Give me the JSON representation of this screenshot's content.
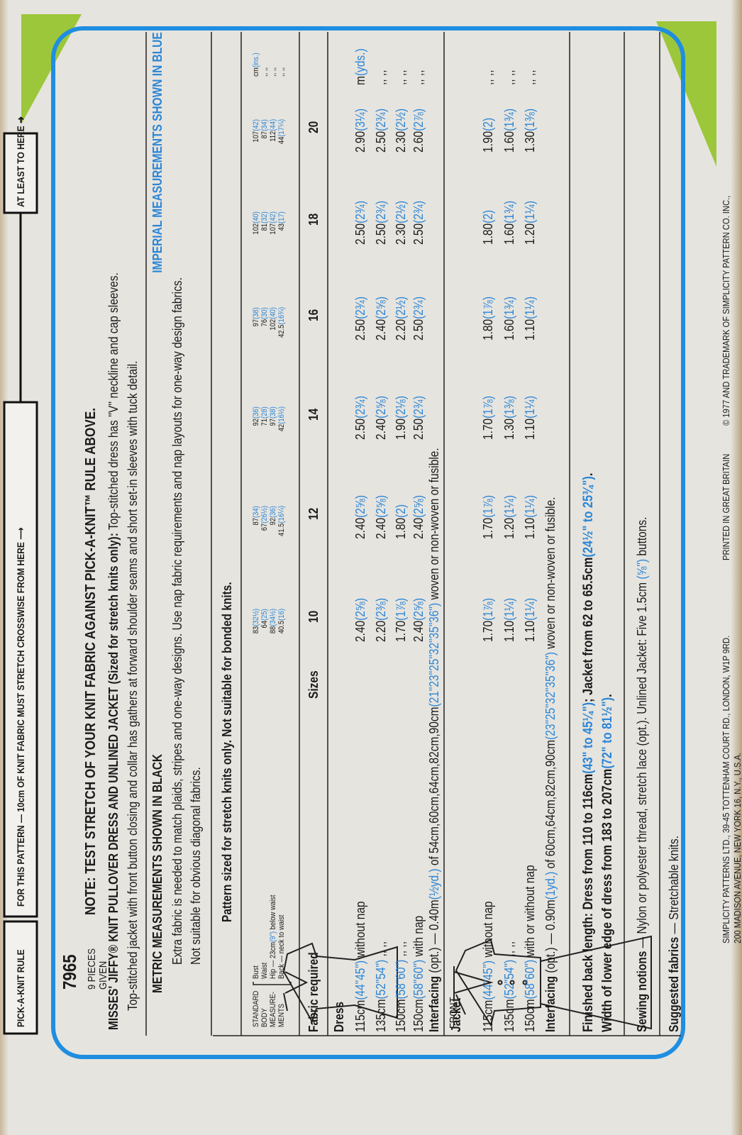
{
  "rule": {
    "label": "PICK-A-KNIT RULE",
    "text": "FOR THIS PATTERN — 10cm OF KNIT FABRIC MUST STRETCH CROSSWISE FROM HERE ⟶",
    "end": "AT LEAST TO HERE ➜"
  },
  "pattern": {
    "number": "7965",
    "pieces": [
      "9 PIECES",
      "GIVEN"
    ],
    "front": "FRONT"
  },
  "note": "NOTE: TEST STRETCH OF YOUR KNIT FABRIC AGAINST PICK-A-KNIT™ RULE ABOVE.",
  "title": "MISSES' JIFFY® KNIT PULLOVER DRESS AND UNLINED JACKET (Sized for stretch knits only):",
  "description": [
    "Top-stitched dress has ''V'' neckline and cap sleeves.",
    "Top-stitched jacket with front button closing and collar has gathers at forward shoulder seams and short set-in sleeves with tuck detail."
  ],
  "metric_heading": "METRIC MEASUREMENTS SHOWN IN BLACK",
  "imperial_heading": "IMPERIAL MEASUREMENTS SHOWN IN BLUE",
  "imperial_color": "#2b86d6",
  "notes": [
    "Extra fabric is needed to match plaids, stripes and one-way designs. Use nap fabric requirements and nap layouts for one-way design fabrics.",
    "Not suitable for obvious diagonal fabrics."
  ],
  "sized_for": "Pattern sized for stretch knits only. Not suitable for bonded knits.",
  "measurements": {
    "label": [
      "STANDARD",
      "BODY",
      "MEASURE-",
      "MENTS"
    ],
    "rows": [
      {
        "label": [
          {
            "text": "Bust"
          }
        ],
        "cells": [
          [
            "83",
            "(32½)"
          ],
          [
            "87",
            "(34)"
          ],
          [
            "92",
            "(36)"
          ],
          [
            "97",
            "(38)"
          ],
          [
            "102",
            "(40)"
          ],
          [
            "107",
            "(42)"
          ]
        ],
        "tail": [
          {
            "text": "cm"
          },
          {
            "text": "(ins.)",
            "color": "#2b86d6"
          }
        ]
      },
      {
        "label": [
          {
            "text": "Waist"
          }
        ],
        "cells": [
          [
            "64",
            "(25)"
          ],
          [
            "67",
            "(26½)"
          ],
          [
            "71",
            "(28)"
          ],
          [
            "76",
            "(30)"
          ],
          [
            "81",
            "(32)"
          ],
          [
            "87",
            "(34)"
          ]
        ],
        "tail": [
          {
            "text": ",,   ,,"
          }
        ]
      },
      {
        "label": [
          {
            "text": "Hip — 23cm"
          },
          {
            "text": "(9\")",
            "color": "#2b86d6"
          },
          {
            "text": " below waist"
          }
        ],
        "cells": [
          [
            "88",
            "(34½)"
          ],
          [
            "92",
            "(36)"
          ],
          [
            "97",
            "(38)"
          ],
          [
            "102",
            "(40)"
          ],
          [
            "107",
            "(42)"
          ],
          [
            "112",
            "(44)"
          ]
        ],
        "tail": [
          {
            "text": ",,   ,,"
          }
        ]
      },
      {
        "label": [
          {
            "text": "Back — neck to waist"
          }
        ],
        "cells": [
          [
            "40.5",
            "(16)"
          ],
          [
            "41.5",
            "(16¼)"
          ],
          [
            "42",
            "(16½)"
          ],
          [
            "42.5",
            "(16¾)"
          ],
          [
            "43",
            "(17)"
          ],
          [
            "44",
            "(17¼)"
          ]
        ],
        "tail": [
          {
            "text": ",,   ,,"
          }
        ]
      }
    ]
  },
  "fabric_label": "Fabric required",
  "sizes_label": "Sizes",
  "sizes": [
    "10",
    "12",
    "14",
    "16",
    "18",
    "20"
  ],
  "dress": {
    "heading": "Dress",
    "rows": [
      {
        "label": [
          {
            "text": "115cm"
          },
          {
            "text": "(44\"45\")",
            "color": "#2b86d6"
          },
          {
            "text": " without nap"
          }
        ],
        "cells": [
          [
            "2.40",
            "(2⅝)"
          ],
          [
            "2.40",
            "(2⅝)"
          ],
          [
            "2.50",
            "(2¾)"
          ],
          [
            "2.50",
            "(2¾)"
          ],
          [
            "2.50",
            "(2¾)"
          ],
          [
            "2.90",
            "(3¼)"
          ]
        ],
        "tail": [
          {
            "text": "m"
          },
          {
            "text": "(yds.)",
            "color": "#2b86d6"
          }
        ]
      },
      {
        "label": [
          {
            "text": "135cm"
          },
          {
            "text": "(52\"54\")",
            "color": "#2b86d6"
          },
          {
            "text": "   ,,    ,,"
          }
        ],
        "cells": [
          [
            "2.20",
            "(2⅜)"
          ],
          [
            "2.40",
            "(2⅝)"
          ],
          [
            "2.40",
            "(2⅝)"
          ],
          [
            "2.40",
            "(2⅝)"
          ],
          [
            "2.50",
            "(2¾)"
          ],
          [
            "2.50",
            "(2¾)"
          ]
        ],
        "tail": [
          {
            "text": ",,   ,,"
          }
        ]
      },
      {
        "label": [
          {
            "text": "150cm"
          },
          {
            "text": "(58\"60\")",
            "color": "#2b86d6"
          },
          {
            "text": "   ,,    ,,"
          }
        ],
        "cells": [
          [
            "1.70",
            "(1⅞)"
          ],
          [
            "1.80",
            "(2)"
          ],
          [
            "1.90",
            "(2⅛)"
          ],
          [
            "2.20",
            "(2½)"
          ],
          [
            "2.30",
            "(2½)"
          ],
          [
            "2.30",
            "(2½)"
          ]
        ],
        "tail": [
          {
            "text": ",,   ,,"
          }
        ]
      },
      {
        "label": [
          {
            "text": "150cm"
          },
          {
            "text": "(58\"60\")",
            "color": "#2b86d6"
          },
          {
            "text": " with nap"
          }
        ],
        "cells": [
          [
            "2.40",
            "(2⅝)"
          ],
          [
            "2.40",
            "(2⅝)"
          ],
          [
            "2.50",
            "(2¾)"
          ],
          [
            "2.50",
            "(2¾)"
          ],
          [
            "2.50",
            "(2¾)"
          ],
          [
            "2.60",
            "(2⅞)"
          ]
        ],
        "tail": [
          {
            "text": ",,   ,,"
          }
        ]
      }
    ],
    "interfacing": {
      "label": "Interfacing",
      "segments": [
        {
          "text": " (opt.) — 0.40m"
        },
        {
          "text": "(½yd.)",
          "color": "#2b86d6"
        },
        {
          "text": " of 54cm,60cm,64cm,82cm,90cm"
        },
        {
          "text": "(21\"23\"25\"32\"35\"36\")",
          "color": "#2b86d6"
        },
        {
          "text": " woven or non-woven or fusible."
        }
      ]
    }
  },
  "jacket": {
    "heading": "Jacket",
    "rows": [
      {
        "label": [
          {
            "text": "115cm"
          },
          {
            "text": "(44\"45\")",
            "color": "#2b86d6"
          },
          {
            "text": " without nap"
          }
        ],
        "cells": [
          [
            "1.70",
            "(1⅞)"
          ],
          [
            "1.70",
            "(1⅞)"
          ],
          [
            "1.70",
            "(1⅞)"
          ],
          [
            "1.80",
            "(1⅞)"
          ],
          [
            "1.80",
            "(2)"
          ],
          [
            "1.90",
            "(2)"
          ]
        ],
        "tail": [
          {
            "text": ",,   ,,"
          }
        ]
      },
      {
        "label": [
          {
            "text": "135cm"
          },
          {
            "text": "(52\"54\")",
            "color": "#2b86d6"
          },
          {
            "text": "   ,,    ,,"
          }
        ],
        "cells": [
          [
            "1.10",
            "(1¼)"
          ],
          [
            "1.20",
            "(1¼)"
          ],
          [
            "1.30",
            "(1⅜)"
          ],
          [
            "1.60",
            "(1¾)"
          ],
          [
            "1.60",
            "(1¾)"
          ],
          [
            "1.60",
            "(1¾)"
          ]
        ],
        "tail": [
          {
            "text": ",,   ,,"
          }
        ]
      },
      {
        "label": [
          {
            "text": "150cm"
          },
          {
            "text": "(58\"60\")",
            "color": "#2b86d6"
          },
          {
            "text": " with or without nap"
          }
        ],
        "cells": [
          [
            "1.10",
            "(1¼)"
          ],
          [
            "1.10",
            "(1¼)"
          ],
          [
            "1.10",
            "(1¼)"
          ],
          [
            "1.10",
            "(1¼)"
          ],
          [
            "1.20",
            "(1¼)"
          ],
          [
            "1.30",
            "(1⅜)"
          ]
        ],
        "tail": [
          {
            "text": ",,   ,,"
          }
        ]
      }
    ],
    "interfacing": {
      "label": "Interfacing",
      "segments": [
        {
          "text": " (opt.) — 0.90m"
        },
        {
          "text": "(1yd.)",
          "color": "#2b86d6"
        },
        {
          "text": " of 60cm,64cm,82cm,90cm"
        },
        {
          "text": "(23\"25\"32\"35\"36\")",
          "color": "#2b86d6"
        },
        {
          "text": " woven or non-woven or fusible."
        }
      ]
    }
  },
  "finished": [
    {
      "text": "Finished back length: Dress from 110 to 116cm"
    },
    {
      "text": "(43\" to 45¼\")",
      "color": "#2b86d6"
    },
    {
      "text": "; Jacket from 62 to 65.5cm"
    },
    {
      "text": "(24½\" to 25¾\")",
      "color": "#2b86d6"
    },
    {
      "text": "."
    }
  ],
  "width": [
    {
      "text": "Width of lower edge of dress from 183 to 207cm"
    },
    {
      "text": "(72\" to 81½\")",
      "color": "#2b86d6"
    },
    {
      "text": "."
    }
  ],
  "notions": {
    "label": "Sewing notions",
    "segments": [
      {
        "text": " — Nylon or polyester thread, stretch lace (opt.). Unlined Jacket: Five 1.5cm "
      },
      {
        "text": "(⅝\")",
        "color": "#2b86d6"
      },
      {
        "text": " buttons."
      }
    ]
  },
  "suggested": {
    "label": "Suggested fabrics",
    "segments": [
      {
        "text": " — Stretchable knits."
      }
    ]
  },
  "footer": [
    "SIMPLICITY PATTERNS LTD., 39-45 TOTTENHAM COURT RD., LONDON, W1P 9RD.",
    "PRINTED IN GREAT BRITAIN",
    "© 1977 AND TRADEMARK OF SIMPLICITY PATTERN CO. INC.,",
    "200 MADISON AVENUE, NEW YORK 16, N.Y., U.S.A."
  ]
}
